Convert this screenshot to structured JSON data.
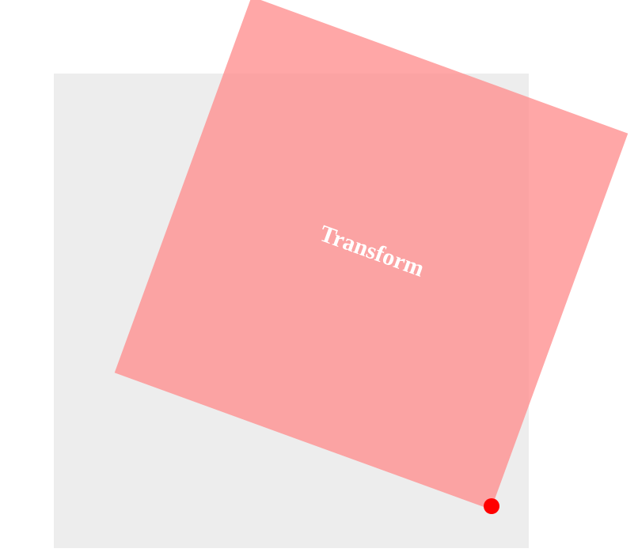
{
  "scene": {
    "label": "Transform",
    "rotation_deg": 20,
    "colors": {
      "background": "#ffffff",
      "reference_square": "#ededed",
      "transformed_square": "#ff8a8a",
      "transformed_opacity": 0.75,
      "label_text": "#ffffff",
      "corner_marker": "#ff0000"
    }
  }
}
